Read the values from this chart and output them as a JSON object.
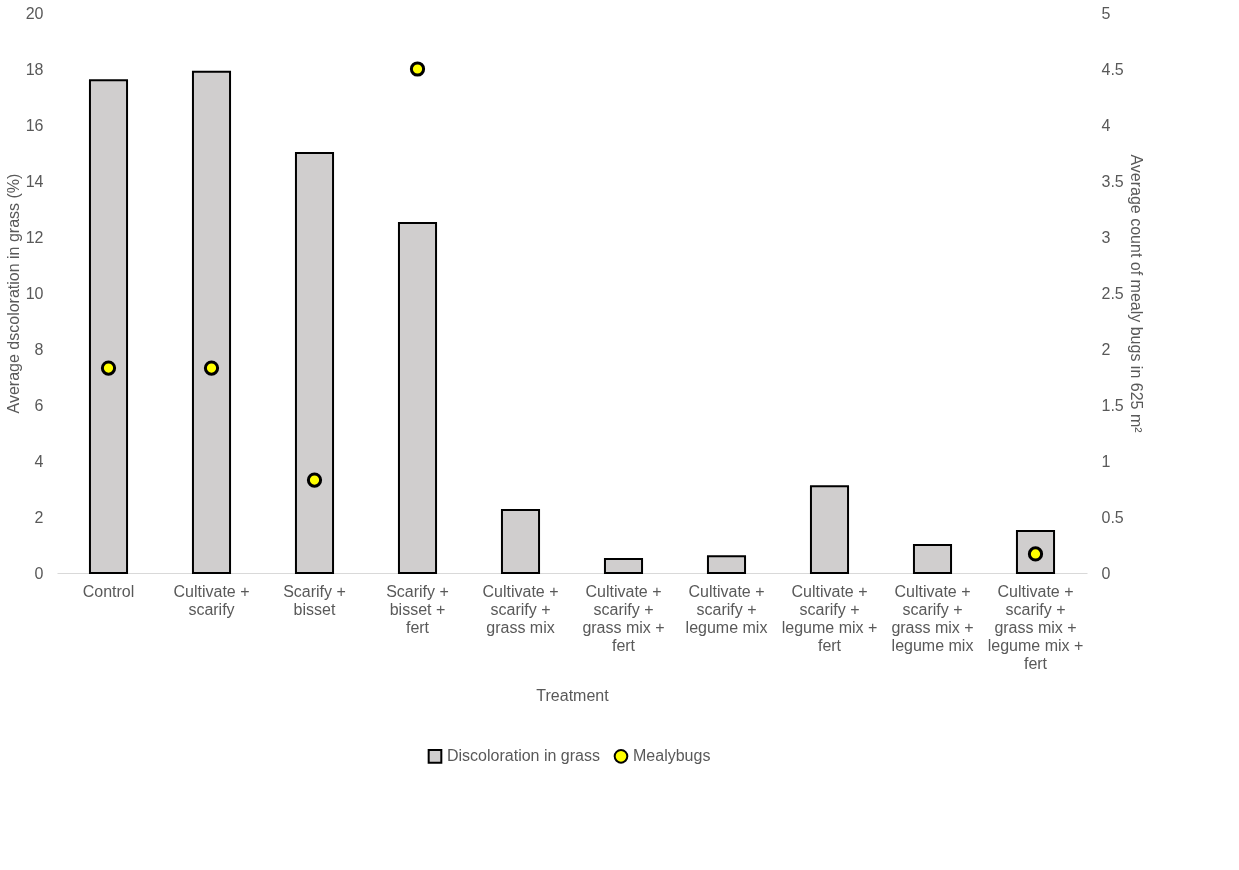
{
  "chart_data": {
    "type": "bar",
    "xlabel": "Treatment",
    "ylabel": "Average dscoloration in grass (%)",
    "y2label": "Average count of mealy bugs in 625 m²",
    "categories": [
      "Control",
      "Cultivate + scarify",
      "Scarify + bisset",
      "Scarify + bisset + fert",
      "Cultivate + scarify + grass mix",
      "Cultivate + scarify + grass mix + fert",
      "Cultivate + scarify + legume mix",
      "Cultivate + scarify + legume mix + fert",
      "Cultivate + scarify + grass mix + legume mix",
      "Cultivate + scarify + grass mix + legume mix + fert"
    ],
    "series": [
      {
        "name": "Discoloration in grass",
        "color": "#d0cece",
        "values": [
          17.6,
          17.9,
          15.0,
          12.5,
          2.25,
          0.5,
          0.6,
          3.1,
          1.0,
          1.5
        ]
      },
      {
        "name": "Mealybugs",
        "type": "scatter",
        "axis": "y2",
        "marker": "circle",
        "color": "#ffff00",
        "values": [
          1.83,
          1.83,
          0.83,
          4.5,
          null,
          null,
          null,
          null,
          null,
          0.17
        ]
      }
    ],
    "ylim": [
      0,
      20
    ],
    "yticks": [
      0,
      2,
      4,
      6,
      8,
      10,
      12,
      14,
      16,
      18,
      20
    ],
    "y2lim": [
      0,
      5
    ],
    "y2ticks": [
      0,
      0.5,
      1,
      1.5,
      2,
      2.5,
      3,
      3.5,
      4,
      4.5,
      5
    ],
    "legend": "bottom"
  }
}
